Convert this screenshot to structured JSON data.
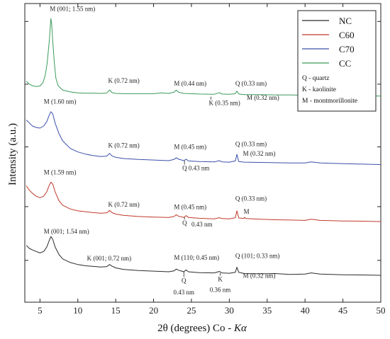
{
  "chart_data": {
    "type": "line",
    "xlabel_prefix": "2θ (degrees) Co - ",
    "xlabel_italic": "Kα",
    "ylabel": "Intensity (a.u.)",
    "xlim": [
      3,
      50
    ],
    "ylim": [
      0,
      100
    ],
    "xticks": [
      5,
      10,
      15,
      20,
      25,
      30,
      35,
      40,
      45,
      50
    ],
    "yticks": [
      14,
      32,
      52,
      73,
      94
    ],
    "legend_position": "top-right",
    "series": [
      {
        "name": "NC",
        "color": "#2b2b2b",
        "baseline": 8.5,
        "points": [
          [
            3.2,
            19
          ],
          [
            3.6,
            18
          ],
          [
            4.0,
            17.5
          ],
          [
            4.5,
            17
          ],
          [
            5.0,
            16.5
          ],
          [
            5.5,
            17
          ],
          [
            5.9,
            18.5
          ],
          [
            6.2,
            20.5
          ],
          [
            6.45,
            22
          ],
          [
            6.7,
            21
          ],
          [
            7.0,
            18.5
          ],
          [
            7.5,
            16
          ],
          [
            8.0,
            14.5
          ],
          [
            9.0,
            13.3
          ],
          [
            10,
            12.6
          ],
          [
            11,
            12.2
          ],
          [
            12,
            12.0
          ],
          [
            13,
            11.8
          ],
          [
            13.8,
            11.9
          ],
          [
            14.2,
            12.6
          ],
          [
            14.5,
            12.1
          ],
          [
            15,
            11.5
          ],
          [
            16,
            11.0
          ],
          [
            18,
            10.6
          ],
          [
            20,
            10.4
          ],
          [
            22,
            10.2
          ],
          [
            22.7,
            10.5
          ],
          [
            23.0,
            11.1
          ],
          [
            23.3,
            10.7
          ],
          [
            24,
            10.2
          ],
          [
            24.3,
            10.8
          ],
          [
            24.6,
            10.2
          ],
          [
            26,
            9.9
          ],
          [
            28,
            9.8
          ],
          [
            28.7,
            10.3
          ],
          [
            29.0,
            9.8
          ],
          [
            30,
            9.7
          ],
          [
            30.8,
            10.0
          ],
          [
            31.0,
            11.7
          ],
          [
            31.25,
            10.0
          ],
          [
            32,
            9.6
          ],
          [
            34,
            9.5
          ],
          [
            36,
            9.6
          ],
          [
            38,
            9.3
          ],
          [
            40,
            9.4
          ],
          [
            40.8,
            9.8
          ],
          [
            42,
            9.4
          ],
          [
            45,
            9.2
          ],
          [
            48,
            9.1
          ],
          [
            50,
            9.0
          ]
        ]
      },
      {
        "name": "C60",
        "color": "#c0392b",
        "baseline": 26.5,
        "points": [
          [
            3.2,
            39
          ],
          [
            3.6,
            37.5
          ],
          [
            4.0,
            36.5
          ],
          [
            4.5,
            35.5
          ],
          [
            5.0,
            35
          ],
          [
            5.5,
            35.5
          ],
          [
            5.9,
            37
          ],
          [
            6.2,
            39
          ],
          [
            6.45,
            40.2
          ],
          [
            6.7,
            39.5
          ],
          [
            7.0,
            37
          ],
          [
            7.5,
            34
          ],
          [
            8.0,
            32.5
          ],
          [
            9.0,
            31.2
          ],
          [
            10,
            30.6
          ],
          [
            11,
            30.3
          ],
          [
            12,
            30.0
          ],
          [
            13,
            29.8
          ],
          [
            13.8,
            29.9
          ],
          [
            14.2,
            30.7
          ],
          [
            14.5,
            30.0
          ],
          [
            15,
            29.5
          ],
          [
            16,
            29.1
          ],
          [
            18,
            28.7
          ],
          [
            20,
            28.5
          ],
          [
            22,
            28.4
          ],
          [
            22.7,
            28.7
          ],
          [
            23.0,
            29.3
          ],
          [
            23.3,
            28.8
          ],
          [
            24,
            28.4
          ],
          [
            24.3,
            29.0
          ],
          [
            24.6,
            28.4
          ],
          [
            26,
            28.1
          ],
          [
            28,
            27.9
          ],
          [
            28.7,
            28.3
          ],
          [
            29.0,
            28.0
          ],
          [
            30,
            27.9
          ],
          [
            30.8,
            28.3
          ],
          [
            31.0,
            30.6
          ],
          [
            31.25,
            28.2
          ],
          [
            31.9,
            28.0
          ],
          [
            32.0,
            28.4
          ],
          [
            32.2,
            28.0
          ],
          [
            34,
            27.8
          ],
          [
            36,
            27.6
          ],
          [
            38,
            27.5
          ],
          [
            40,
            27.4
          ],
          [
            40.8,
            27.8
          ],
          [
            42,
            27.4
          ],
          [
            45,
            27.2
          ],
          [
            48,
            27.1
          ],
          [
            50,
            27.0
          ]
        ]
      },
      {
        "name": "C70",
        "color": "#3c4fa8",
        "baseline": 45.5,
        "points": [
          [
            3.2,
            61
          ],
          [
            3.6,
            60
          ],
          [
            4.0,
            59
          ],
          [
            4.5,
            58.5
          ],
          [
            5.0,
            58.3
          ],
          [
            5.5,
            59
          ],
          [
            5.9,
            60.5
          ],
          [
            6.2,
            62.5
          ],
          [
            6.45,
            63.8
          ],
          [
            6.7,
            63
          ],
          [
            7.0,
            60
          ],
          [
            7.5,
            56.5
          ],
          [
            8.0,
            54
          ],
          [
            9.0,
            51.5
          ],
          [
            10,
            50.3
          ],
          [
            11,
            49.6
          ],
          [
            12,
            49.1
          ],
          [
            13,
            48.8
          ],
          [
            13.8,
            48.9
          ],
          [
            14.2,
            49.8
          ],
          [
            14.5,
            49.0
          ],
          [
            15,
            48.5
          ],
          [
            16,
            48.1
          ],
          [
            18,
            47.8
          ],
          [
            20,
            47.6
          ],
          [
            22,
            47.4
          ],
          [
            22.7,
            47.8
          ],
          [
            23.0,
            48.4
          ],
          [
            23.3,
            47.9
          ],
          [
            24,
            47.4
          ],
          [
            24.3,
            47.9
          ],
          [
            24.6,
            47.3
          ],
          [
            26,
            47.1
          ],
          [
            28,
            47.0
          ],
          [
            28.7,
            47.4
          ],
          [
            29.0,
            47.0
          ],
          [
            30,
            46.9
          ],
          [
            30.8,
            47.3
          ],
          [
            31.0,
            49.5
          ],
          [
            31.25,
            47.1
          ],
          [
            32,
            46.9
          ],
          [
            34,
            46.8
          ],
          [
            36,
            46.7
          ],
          [
            38,
            46.6
          ],
          [
            40,
            46.6
          ],
          [
            40.8,
            47.0
          ],
          [
            42,
            46.6
          ],
          [
            45,
            46.4
          ],
          [
            48,
            46.2
          ],
          [
            50,
            46.1
          ]
        ]
      },
      {
        "name": "CC",
        "color": "#3a9b5a",
        "baseline": 68,
        "points": [
          [
            3.2,
            74
          ],
          [
            3.6,
            73
          ],
          [
            4.0,
            72.5
          ],
          [
            4.5,
            72.2
          ],
          [
            5.0,
            72.4
          ],
          [
            5.4,
            73.5
          ],
          [
            5.7,
            76
          ],
          [
            5.95,
            80
          ],
          [
            6.1,
            84
          ],
          [
            6.25,
            88
          ],
          [
            6.35,
            92
          ],
          [
            6.45,
            95
          ],
          [
            6.55,
            93
          ],
          [
            6.7,
            87
          ],
          [
            6.9,
            80
          ],
          [
            7.1,
            75
          ],
          [
            7.4,
            72.5
          ],
          [
            8.0,
            71
          ],
          [
            9.0,
            70.4
          ],
          [
            10,
            70.1
          ],
          [
            11,
            70.0
          ],
          [
            12,
            70.0
          ],
          [
            13,
            69.9
          ],
          [
            13.8,
            70.0
          ],
          [
            14.2,
            71.1
          ],
          [
            14.5,
            70.2
          ],
          [
            15,
            69.9
          ],
          [
            16,
            69.8
          ],
          [
            18,
            69.8
          ],
          [
            20,
            69.8
          ],
          [
            21,
            70.1
          ],
          [
            22,
            69.9
          ],
          [
            22.7,
            70.3
          ],
          [
            23.0,
            71.0
          ],
          [
            23.3,
            70.3
          ],
          [
            24,
            69.9
          ],
          [
            26,
            69.7
          ],
          [
            28,
            69.6
          ],
          [
            28.7,
            70.2
          ],
          [
            29.0,
            69.7
          ],
          [
            30,
            69.6
          ],
          [
            30.8,
            69.8
          ],
          [
            31.0,
            70.7
          ],
          [
            31.25,
            69.7
          ],
          [
            32,
            69.5
          ],
          [
            34,
            69.5
          ],
          [
            36,
            69.4
          ],
          [
            38,
            69.4
          ],
          [
            40,
            69.3
          ],
          [
            40.8,
            69.7
          ],
          [
            42,
            69.3
          ],
          [
            45,
            69.2
          ],
          [
            48,
            69.1
          ],
          [
            50,
            69.0
          ]
        ]
      }
    ],
    "legend_notes": [
      "Q - quartz",
      "K - kaolinite",
      "M - montmorillonite"
    ],
    "annotations": [
      {
        "text": "M (001; 1.55 nm)",
        "x": 6.3,
        "y": 97.5,
        "anchor": "start",
        "tick": false
      },
      {
        "text": "K (0.72 nm)",
        "x": 14.0,
        "y": 73.5,
        "anchor": "start",
        "tick": false
      },
      {
        "text": "M (0.44 nm)",
        "x": 22.7,
        "y": 72.5,
        "anchor": "start",
        "tick": false
      },
      {
        "text": "Q (0.33 nm)",
        "x": 30.8,
        "y": 72.5,
        "anchor": "start",
        "tick": false
      },
      {
        "text": "K (0.35 nm)",
        "x": 27.3,
        "y": 66.0,
        "anchor": "start",
        "tick": true,
        "tickTo": 68.8
      },
      {
        "text": "M (0.32 nm)",
        "x": 32.3,
        "y": 67.8,
        "anchor": "start",
        "tick": false
      },
      {
        "text": "M (1.60 nm)",
        "x": 5.5,
        "y": 66.5,
        "anchor": "start",
        "tick": false
      },
      {
        "text": "K (0.72 nm)",
        "x": 14.0,
        "y": 51.8,
        "anchor": "start",
        "tick": false
      },
      {
        "text": "M (0.45 nm)",
        "x": 22.7,
        "y": 51.3,
        "anchor": "start",
        "tick": false
      },
      {
        "text": "Q (0.33 nm)",
        "x": 30.8,
        "y": 52.2,
        "anchor": "start",
        "tick": false
      },
      {
        "text": "Q 0.43 nm",
        "x": 23.8,
        "y": 44.2,
        "anchor": "start",
        "tick": true,
        "tickTo": 47.4
      },
      {
        "text": "M (0.32 nm)",
        "x": 31.8,
        "y": 49.0,
        "anchor": "start",
        "tick": false
      },
      {
        "text": "M (1.59 nm)",
        "x": 5.5,
        "y": 42.8,
        "anchor": "start",
        "tick": false
      },
      {
        "text": "K (0.72 nm)",
        "x": 14.0,
        "y": 32.0,
        "anchor": "start",
        "tick": false
      },
      {
        "text": "M (0.45 nm)",
        "x": 22.7,
        "y": 31.2,
        "anchor": "start",
        "tick": false
      },
      {
        "text": "Q (0.33 nm)",
        "x": 30.8,
        "y": 34.0,
        "anchor": "start",
        "tick": false
      },
      {
        "text": "Q",
        "x": 23.8,
        "y": 25.8,
        "anchor": "start",
        "tick": true,
        "tickTo": 28.4
      },
      {
        "text": "0.43 nm",
        "x": 25.0,
        "y": 25.3,
        "anchor": "start",
        "tick": false
      },
      {
        "text": "M",
        "x": 31.9,
        "y": 29.6,
        "anchor": "start",
        "tick": false
      },
      {
        "text": "M (001; 1.54 nm)",
        "x": 5.5,
        "y": 23.0,
        "anchor": "start",
        "tick": false
      },
      {
        "text": "K (001; 0.72 nm)",
        "x": 11.2,
        "y": 14.0,
        "anchor": "start",
        "tick": false
      },
      {
        "text": "M (110; 0.45 nm)",
        "x": 22.7,
        "y": 14.2,
        "anchor": "start",
        "tick": false
      },
      {
        "text": "Q (101; 0.33 nm)",
        "x": 30.8,
        "y": 14.8,
        "anchor": "start",
        "tick": false
      },
      {
        "text": "Q",
        "x": 24.0,
        "y": 6.5,
        "anchor": "middle",
        "tick": true,
        "tickTo": 10.2
      },
      {
        "text": "0.43 nm",
        "x": 24.0,
        "y": 2.6,
        "anchor": "middle",
        "tick": false
      },
      {
        "text": "K",
        "x": 28.8,
        "y": 7.0,
        "anchor": "middle",
        "tick": true,
        "tickTo": 9.8
      },
      {
        "text": "0.36 nm",
        "x": 28.8,
        "y": 3.4,
        "anchor": "middle",
        "tick": false
      },
      {
        "text": "M (0.32 nm)",
        "x": 31.8,
        "y": 8.2,
        "anchor": "start",
        "tick": false
      }
    ]
  }
}
